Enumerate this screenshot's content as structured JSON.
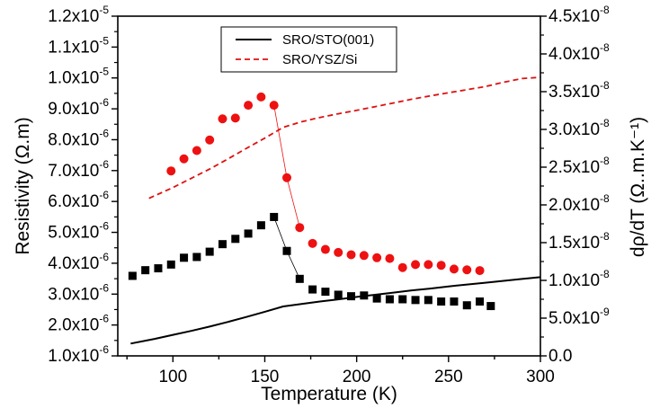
{
  "chart_data": {
    "type": "line",
    "xlabel": "Temperature (K)",
    "ylabel_left": "Resistivity (Ω.m)",
    "ylabel_right": "dρ/dT (Ω..m.K⁻¹)",
    "xlim": [
      70,
      300
    ],
    "ylim_left": [
      1e-06,
      1.2e-05
    ],
    "ylim_right": [
      0,
      4.5e-08
    ],
    "x_ticks": [
      {
        "value": 100,
        "label": "100"
      },
      {
        "value": 150,
        "label": "150"
      },
      {
        "value": 200,
        "label": "200"
      },
      {
        "value": 250,
        "label": "250"
      },
      {
        "value": 300,
        "label": "300"
      }
    ],
    "y_left_ticks": [
      {
        "value": 1e-06,
        "mant": "1.0x10",
        "exp": "-6"
      },
      {
        "value": 2e-06,
        "mant": "2.0x10",
        "exp": "-6"
      },
      {
        "value": 3e-06,
        "mant": "3.0x10",
        "exp": "-6"
      },
      {
        "value": 4e-06,
        "mant": "4.0x10",
        "exp": "-6"
      },
      {
        "value": 5e-06,
        "mant": "5.0x10",
        "exp": "-6"
      },
      {
        "value": 6e-06,
        "mant": "6.0x10",
        "exp": "-6"
      },
      {
        "value": 7e-06,
        "mant": "7.0x10",
        "exp": "-6"
      },
      {
        "value": 8e-06,
        "mant": "8.0x10",
        "exp": "-6"
      },
      {
        "value": 9e-06,
        "mant": "9.0x10",
        "exp": "-6"
      },
      {
        "value": 1e-05,
        "mant": "1.0x10",
        "exp": "-5"
      },
      {
        "value": 1.1e-05,
        "mant": "1.1x10",
        "exp": "-5"
      },
      {
        "value": 1.2e-05,
        "mant": "1.2x10",
        "exp": "-5"
      }
    ],
    "y_right_ticks": [
      {
        "value": 0,
        "mant": "0.0",
        "exp": ""
      },
      {
        "value": 5e-09,
        "mant": "5.0x10",
        "exp": "-9"
      },
      {
        "value": 1e-08,
        "mant": "1.0x10",
        "exp": "-8"
      },
      {
        "value": 1.5e-08,
        "mant": "1.5x10",
        "exp": "-8"
      },
      {
        "value": 2e-08,
        "mant": "2.0x10",
        "exp": "-8"
      },
      {
        "value": 2.5e-08,
        "mant": "2.5x10",
        "exp": "-8"
      },
      {
        "value": 3e-08,
        "mant": "3.0x10",
        "exp": "-8"
      },
      {
        "value": 3.5e-08,
        "mant": "3.5x10",
        "exp": "-8"
      },
      {
        "value": 4e-08,
        "mant": "4.0x10",
        "exp": "-8"
      },
      {
        "value": 4.5e-08,
        "mant": "4.5x10",
        "exp": "-8"
      }
    ],
    "legend_position": "top-center",
    "legend": [
      {
        "label": "SRO/STO(001)",
        "color": "#000000",
        "dash": "solid"
      },
      {
        "label": "SRO/YSZ/Si",
        "color": "#dd1111",
        "dash": "dashed"
      }
    ],
    "series": [
      {
        "name": "SRO/STO(001)",
        "axis": "left",
        "style": "solid-line",
        "color": "#000000",
        "x": [
          77,
          90,
          100,
          110,
          120,
          130,
          140,
          150,
          160,
          170,
          180,
          190,
          200,
          210,
          220,
          230,
          240,
          250,
          260,
          270,
          280,
          290,
          300
        ],
        "y": [
          1.4e-06,
          1.55e-06,
          1.68e-06,
          1.81e-06,
          1.95e-06,
          2.1e-06,
          2.26e-06,
          2.43e-06,
          2.6e-06,
          2.68e-06,
          2.76e-06,
          2.83e-06,
          2.91e-06,
          2.98e-06,
          3.05e-06,
          3.12e-06,
          3.18e-06,
          3.25e-06,
          3.31e-06,
          3.37e-06,
          3.43e-06,
          3.49e-06,
          3.55e-06
        ]
      },
      {
        "name": "SRO/YSZ/Si",
        "axis": "left",
        "style": "dashed-line",
        "color": "#dd1111",
        "x": [
          87,
          100,
          110,
          120,
          130,
          140,
          150,
          160,
          170,
          180,
          190,
          200,
          210,
          220,
          230,
          240,
          250,
          260,
          270,
          280,
          290,
          300
        ],
        "y": [
          6.1e-06,
          6.45e-06,
          6.75e-06,
          7.05e-06,
          7.38e-06,
          7.72e-06,
          8.05e-06,
          8.4e-06,
          8.58e-06,
          8.72e-06,
          8.84e-06,
          8.95e-06,
          9.07e-06,
          9.19e-06,
          9.31e-06,
          9.42e-06,
          9.52e-06,
          9.62e-06,
          9.72e-06,
          9.86e-06,
          9.98e-06,
          1.002e-05
        ]
      },
      {
        "name": "SRO/STO(001) dρ/dT",
        "axis": "right",
        "style": "square-markers",
        "color": "#000000",
        "x": [
          78,
          85,
          92,
          99,
          106,
          113,
          120,
          127,
          134,
          141,
          148,
          155,
          162,
          169,
          176,
          183,
          190,
          197,
          204,
          211,
          218,
          225,
          232,
          239,
          246,
          253,
          260,
          267,
          273
        ],
        "y": [
          1.06e-08,
          1.135e-08,
          1.16e-08,
          1.21e-08,
          1.3e-08,
          1.31e-08,
          1.38e-08,
          1.48e-08,
          1.55e-08,
          1.62e-08,
          1.73e-08,
          1.84e-08,
          1.39e-08,
          1.02e-08,
          8.8e-09,
          8.5e-09,
          8.1e-09,
          7.9e-09,
          8e-09,
          7.6e-09,
          7.5e-09,
          7.5e-09,
          7.4e-09,
          7.4e-09,
          7.2e-09,
          7.2e-09,
          6.7e-09,
          7.2e-09,
          6.6e-09
        ]
      },
      {
        "name": "SRO/YSZ/Si dρ/dT",
        "axis": "right",
        "style": "circle-markers",
        "color": "#ee1111",
        "x": [
          99,
          106,
          113,
          120,
          127,
          134,
          141,
          148,
          155,
          162,
          169,
          176,
          183,
          190,
          197,
          204,
          211,
          218,
          225,
          232,
          239,
          246,
          253,
          260,
          267
        ],
        "y": [
          2.45e-08,
          2.61e-08,
          2.72e-08,
          2.86e-08,
          3.14e-08,
          3.15e-08,
          3.32e-08,
          3.43e-08,
          3.32e-08,
          2.36e-08,
          1.7e-08,
          1.49e-08,
          1.41e-08,
          1.37e-08,
          1.34e-08,
          1.33e-08,
          1.3e-08,
          1.29e-08,
          1.17e-08,
          1.21e-08,
          1.21e-08,
          1.2e-08,
          1.15e-08,
          1.14e-08,
          1.13e-08
        ]
      }
    ]
  }
}
